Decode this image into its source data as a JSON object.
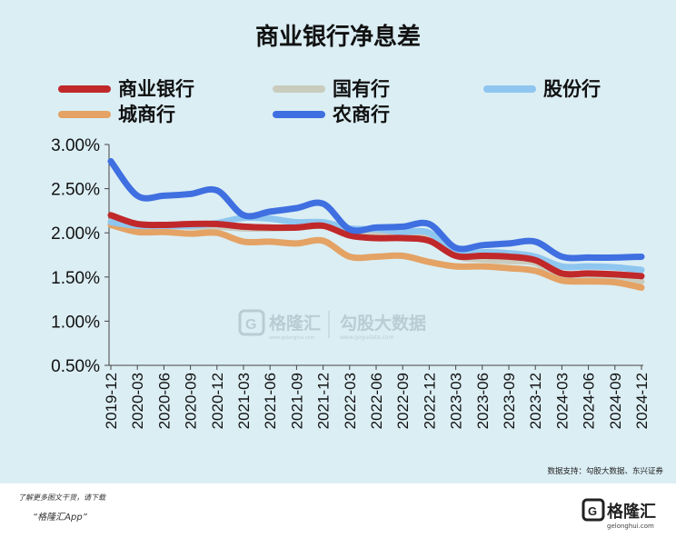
{
  "title": "商业银行净息差",
  "legend": [
    {
      "label": "商业银行",
      "color": "#c0282a"
    },
    {
      "label": "国有行",
      "color": "#c9cbbd"
    },
    {
      "label": "股份行",
      "color": "#8fc6ef"
    },
    {
      "label": "城商行",
      "color": "#e4a264"
    },
    {
      "label": "农商行",
      "color": "#3f6fe0"
    }
  ],
  "source_note": "数据支持：勾股大数据、东兴证券",
  "watermark": {
    "brand": "格隆汇",
    "brand_url": "www.gelonghui.com",
    "data_brand": "勾股大数据",
    "data_url": "www.gogudata.com"
  },
  "footer": {
    "note": "了解更多图文干货，请下载",
    "app": "“格隆汇App”",
    "logo_text": "格隆汇",
    "logo_url": "gelonghui.com"
  },
  "chart_data": {
    "type": "line",
    "title": "商业银行净息差",
    "x": [
      "2019-12",
      "2020-03",
      "2020-06",
      "2020-09",
      "2020-12",
      "2021-03",
      "2021-06",
      "2021-09",
      "2021-12",
      "2022-03",
      "2022-06",
      "2022-09",
      "2022-12",
      "2023-03",
      "2023-06",
      "2023-09",
      "2023-12",
      "2024-03",
      "2024-06",
      "2024-09",
      "2024-12"
    ],
    "ylim": [
      0.5,
      3.0
    ],
    "yticks": [
      "0.50%",
      "1.00%",
      "1.50%",
      "2.00%",
      "2.50%",
      "3.00%"
    ],
    "grid": false,
    "legend_position": "top",
    "series": [
      {
        "name": "国有行",
        "values": [
          2.13,
          2.1,
          2.08,
          2.07,
          2.07,
          2.05,
          2.05,
          2.06,
          2.08,
          2.04,
          1.98,
          1.98,
          1.97,
          1.74,
          1.7,
          1.68,
          1.66,
          1.48,
          1.48,
          1.47,
          1.45
        ]
      },
      {
        "name": "城商行",
        "values": [
          2.09,
          2.01,
          2.01,
          1.99,
          2.0,
          1.9,
          1.9,
          1.88,
          1.91,
          1.73,
          1.73,
          1.74,
          1.67,
          1.62,
          1.62,
          1.6,
          1.57,
          1.46,
          1.45,
          1.44,
          1.38
        ]
      },
      {
        "name": "股份行",
        "values": [
          2.12,
          2.08,
          2.08,
          2.08,
          2.11,
          2.17,
          2.16,
          2.12,
          2.12,
          2.05,
          2.04,
          2.01,
          2.0,
          1.76,
          1.78,
          1.77,
          1.73,
          1.62,
          1.62,
          1.61,
          1.58
        ]
      },
      {
        "name": "商业银行",
        "values": [
          2.2,
          2.1,
          2.09,
          2.1,
          2.1,
          2.07,
          2.06,
          2.06,
          2.08,
          1.97,
          1.94,
          1.94,
          1.91,
          1.74,
          1.74,
          1.73,
          1.69,
          1.54,
          1.54,
          1.53,
          1.51
        ]
      },
      {
        "name": "农商行",
        "values": [
          2.81,
          2.42,
          2.42,
          2.44,
          2.48,
          2.2,
          2.24,
          2.28,
          2.33,
          2.04,
          2.06,
          2.07,
          2.1,
          1.83,
          1.86,
          1.88,
          1.9,
          1.73,
          1.72,
          1.72,
          1.73
        ]
      }
    ]
  }
}
